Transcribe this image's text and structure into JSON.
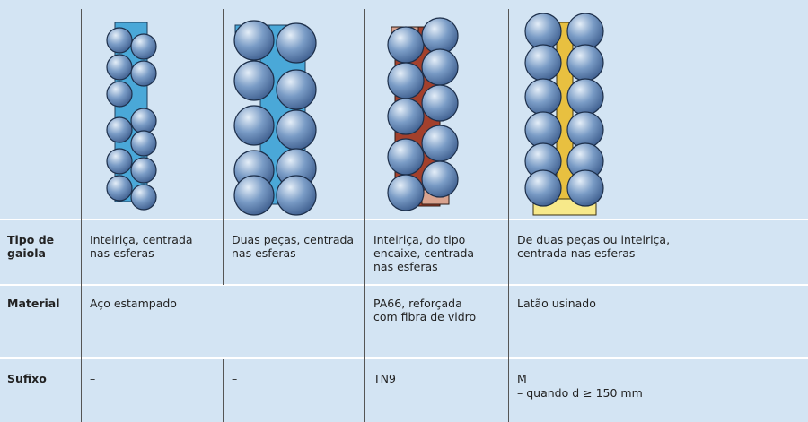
{
  "table": {
    "rows": [
      {
        "header": "Tipo de gaiola",
        "cells": [
          "Inteiriça, centrada nas esferas",
          "Duas peças, centrada nas esferas",
          "Inteiriça, do tipo encaixe, centrada nas esferas",
          "De duas peças ou inteiriça, centrada nas esferas"
        ]
      },
      {
        "header": "Material",
        "cells": [
          "Aço estampado",
          "PA66, reforçada com fibra de vidro",
          "Latão usinado"
        ]
      },
      {
        "header": "Sufixo",
        "cells": [
          "–",
          "–",
          "TN9",
          [
            "M",
            "– quando d ≥ 150 mm"
          ]
        ]
      }
    ]
  }
}
